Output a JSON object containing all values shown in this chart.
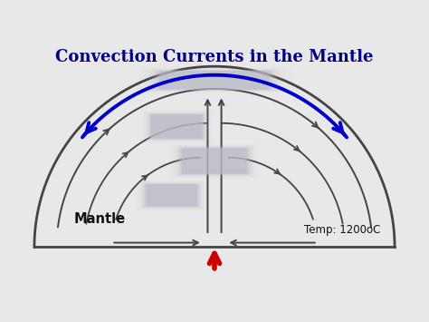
{
  "title": "Convection Currents in the Mantle",
  "title_fontsize": 13,
  "title_fontweight": "bold",
  "title_color": "#000080",
  "bg_color": "#e8e8e8",
  "mantle_label": "Mantle",
  "temp_label": "Temp: 1200oC",
  "arc_color": "#444444",
  "blue_arrow_color": "#0000CC",
  "red_arrow_color": "#cc0000",
  "flow_arrow_color": "#444444",
  "fig_width": 4.74,
  "fig_height": 3.55,
  "dpi": 100
}
